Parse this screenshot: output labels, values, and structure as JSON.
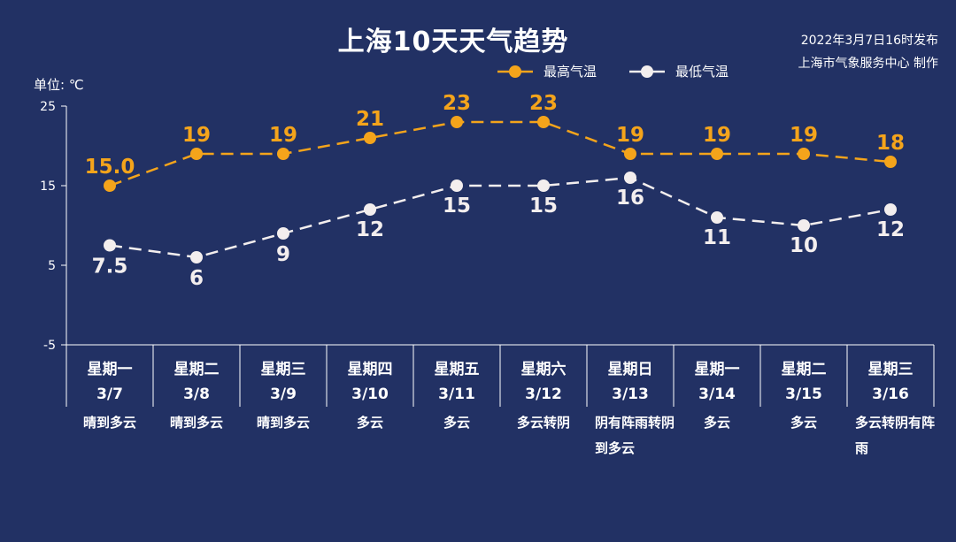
{
  "title": "上海10天天气趋势",
  "publish_time": "2022年3月7日16时发布",
  "producer": "上海市气象服务中心 制作",
  "unit_label": "单位: ℃",
  "colors": {
    "background": "#223164",
    "high": "#f4a41b",
    "low": "#f3eeee",
    "axis": "#ffffff"
  },
  "chart_data": {
    "type": "line",
    "title": "上海10天天气趋势",
    "ylabel": "单位: ℃",
    "ylim": [
      -5,
      25
    ],
    "yticks": [
      25,
      15,
      5,
      -5
    ],
    "grid": false,
    "legend_position": "top-center",
    "categories": [
      "3/7",
      "3/8",
      "3/9",
      "3/10",
      "3/11",
      "3/12",
      "3/13",
      "3/14",
      "3/15",
      "3/16"
    ],
    "weekdays": [
      "星期一",
      "星期二",
      "星期三",
      "星期四",
      "星期五",
      "星期六",
      "星期日",
      "星期一",
      "星期二",
      "星期三"
    ],
    "weather": [
      "晴到多云",
      "晴到多云",
      "晴到多云",
      "多云",
      "多云",
      "多云转阴",
      "阴有阵雨转阴到多云",
      "多云",
      "多云",
      "多云转阴有阵雨"
    ],
    "series": [
      {
        "name": "最高气温",
        "values": [
          15,
          19,
          19,
          21,
          23,
          23,
          19,
          19,
          19,
          18
        ],
        "labels": [
          "15.0",
          "19",
          "19",
          "21",
          "23",
          "23",
          "19",
          "19",
          "19",
          "18"
        ]
      },
      {
        "name": "最低气温",
        "values": [
          7.5,
          6,
          9,
          12,
          15,
          15,
          16,
          11,
          10,
          12
        ],
        "labels": [
          "7.5",
          "6",
          "9",
          "12",
          "15",
          "15",
          "16",
          "11",
          "10",
          "12"
        ]
      }
    ]
  }
}
